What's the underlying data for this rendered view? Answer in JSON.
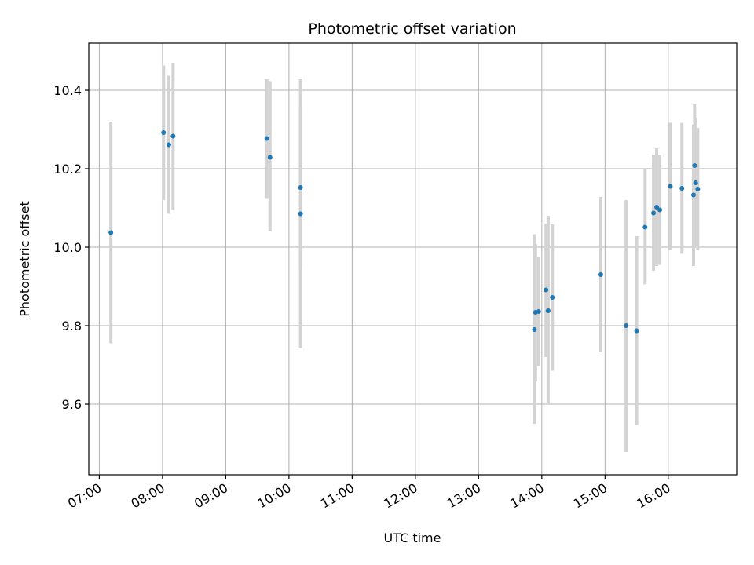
{
  "chart_data": {
    "type": "scatter",
    "title": "Photometric offset variation",
    "xlabel": "UTC time",
    "ylabel": "Photometric offset",
    "xlim": [
      "06:50",
      "17:05"
    ],
    "ylim": [
      9.42,
      10.52
    ],
    "x_ticks": [
      "07:00",
      "08:00",
      "09:00",
      "10:00",
      "11:00",
      "12:00",
      "13:00",
      "14:00",
      "15:00",
      "16:00"
    ],
    "y_ticks": [
      9.6,
      9.8,
      10.0,
      10.2,
      10.4
    ],
    "grid": true,
    "colors": {
      "points": "#1f77b4",
      "error_bars": "#d3d3d3",
      "grid": "#b0b0b0"
    },
    "points": [
      {
        "x": "07:11",
        "y": 10.037,
        "ylow": 9.755,
        "yhigh": 10.32
      },
      {
        "x": "08:01",
        "y": 10.292,
        "ylow": 10.12,
        "yhigh": 10.463
      },
      {
        "x": "08:06",
        "y": 10.261,
        "ylow": 10.085,
        "yhigh": 10.437
      },
      {
        "x": "08:10",
        "y": 10.283,
        "ylow": 10.095,
        "yhigh": 10.47
      },
      {
        "x": "09:39",
        "y": 10.277,
        "ylow": 10.125,
        "yhigh": 10.428
      },
      {
        "x": "09:42",
        "y": 10.229,
        "ylow": 10.04,
        "yhigh": 10.423
      },
      {
        "x": "10:11",
        "y": 10.152,
        "ylow": 9.95,
        "yhigh": 10.357
      },
      {
        "x": "10:11",
        "y": 10.085,
        "ylow": 9.742,
        "yhigh": 10.428
      },
      {
        "x": "13:53",
        "y": 9.79,
        "ylow": 9.55,
        "yhigh": 10.033
      },
      {
        "x": "13:54",
        "y": 9.834,
        "ylow": 9.658,
        "yhigh": 10.008
      },
      {
        "x": "13:57",
        "y": 9.836,
        "ylow": 9.697,
        "yhigh": 9.975
      },
      {
        "x": "14:04",
        "y": 9.891,
        "ylow": 9.72,
        "yhigh": 10.06
      },
      {
        "x": "14:06",
        "y": 9.838,
        "ylow": 9.6,
        "yhigh": 10.08
      },
      {
        "x": "14:10",
        "y": 9.872,
        "ylow": 9.685,
        "yhigh": 10.058
      },
      {
        "x": "14:56",
        "y": 9.93,
        "ylow": 9.732,
        "yhigh": 10.128
      },
      {
        "x": "15:20",
        "y": 9.8,
        "ylow": 9.478,
        "yhigh": 10.12
      },
      {
        "x": "15:30",
        "y": 9.787,
        "ylow": 9.547,
        "yhigh": 10.028
      },
      {
        "x": "15:38",
        "y": 10.051,
        "ylow": 9.905,
        "yhigh": 10.198
      },
      {
        "x": "15:46",
        "y": 10.087,
        "ylow": 9.94,
        "yhigh": 10.235
      },
      {
        "x": "15:49",
        "y": 10.102,
        "ylow": 9.952,
        "yhigh": 10.252
      },
      {
        "x": "15:52",
        "y": 10.095,
        "ylow": 9.955,
        "yhigh": 10.235
      },
      {
        "x": "16:02",
        "y": 10.155,
        "ylow": 9.993,
        "yhigh": 10.317
      },
      {
        "x": "16:13",
        "y": 10.15,
        "ylow": 9.983,
        "yhigh": 10.317
      },
      {
        "x": "16:24",
        "y": 10.133,
        "ylow": 9.952,
        "yhigh": 10.312
      },
      {
        "x": "16:25",
        "y": 10.208,
        "ylow": 10.052,
        "yhigh": 10.364
      },
      {
        "x": "16:26",
        "y": 10.164,
        "ylow": 9.998,
        "yhigh": 10.33
      },
      {
        "x": "16:28",
        "y": 10.148,
        "ylow": 9.992,
        "yhigh": 10.304
      }
    ]
  }
}
